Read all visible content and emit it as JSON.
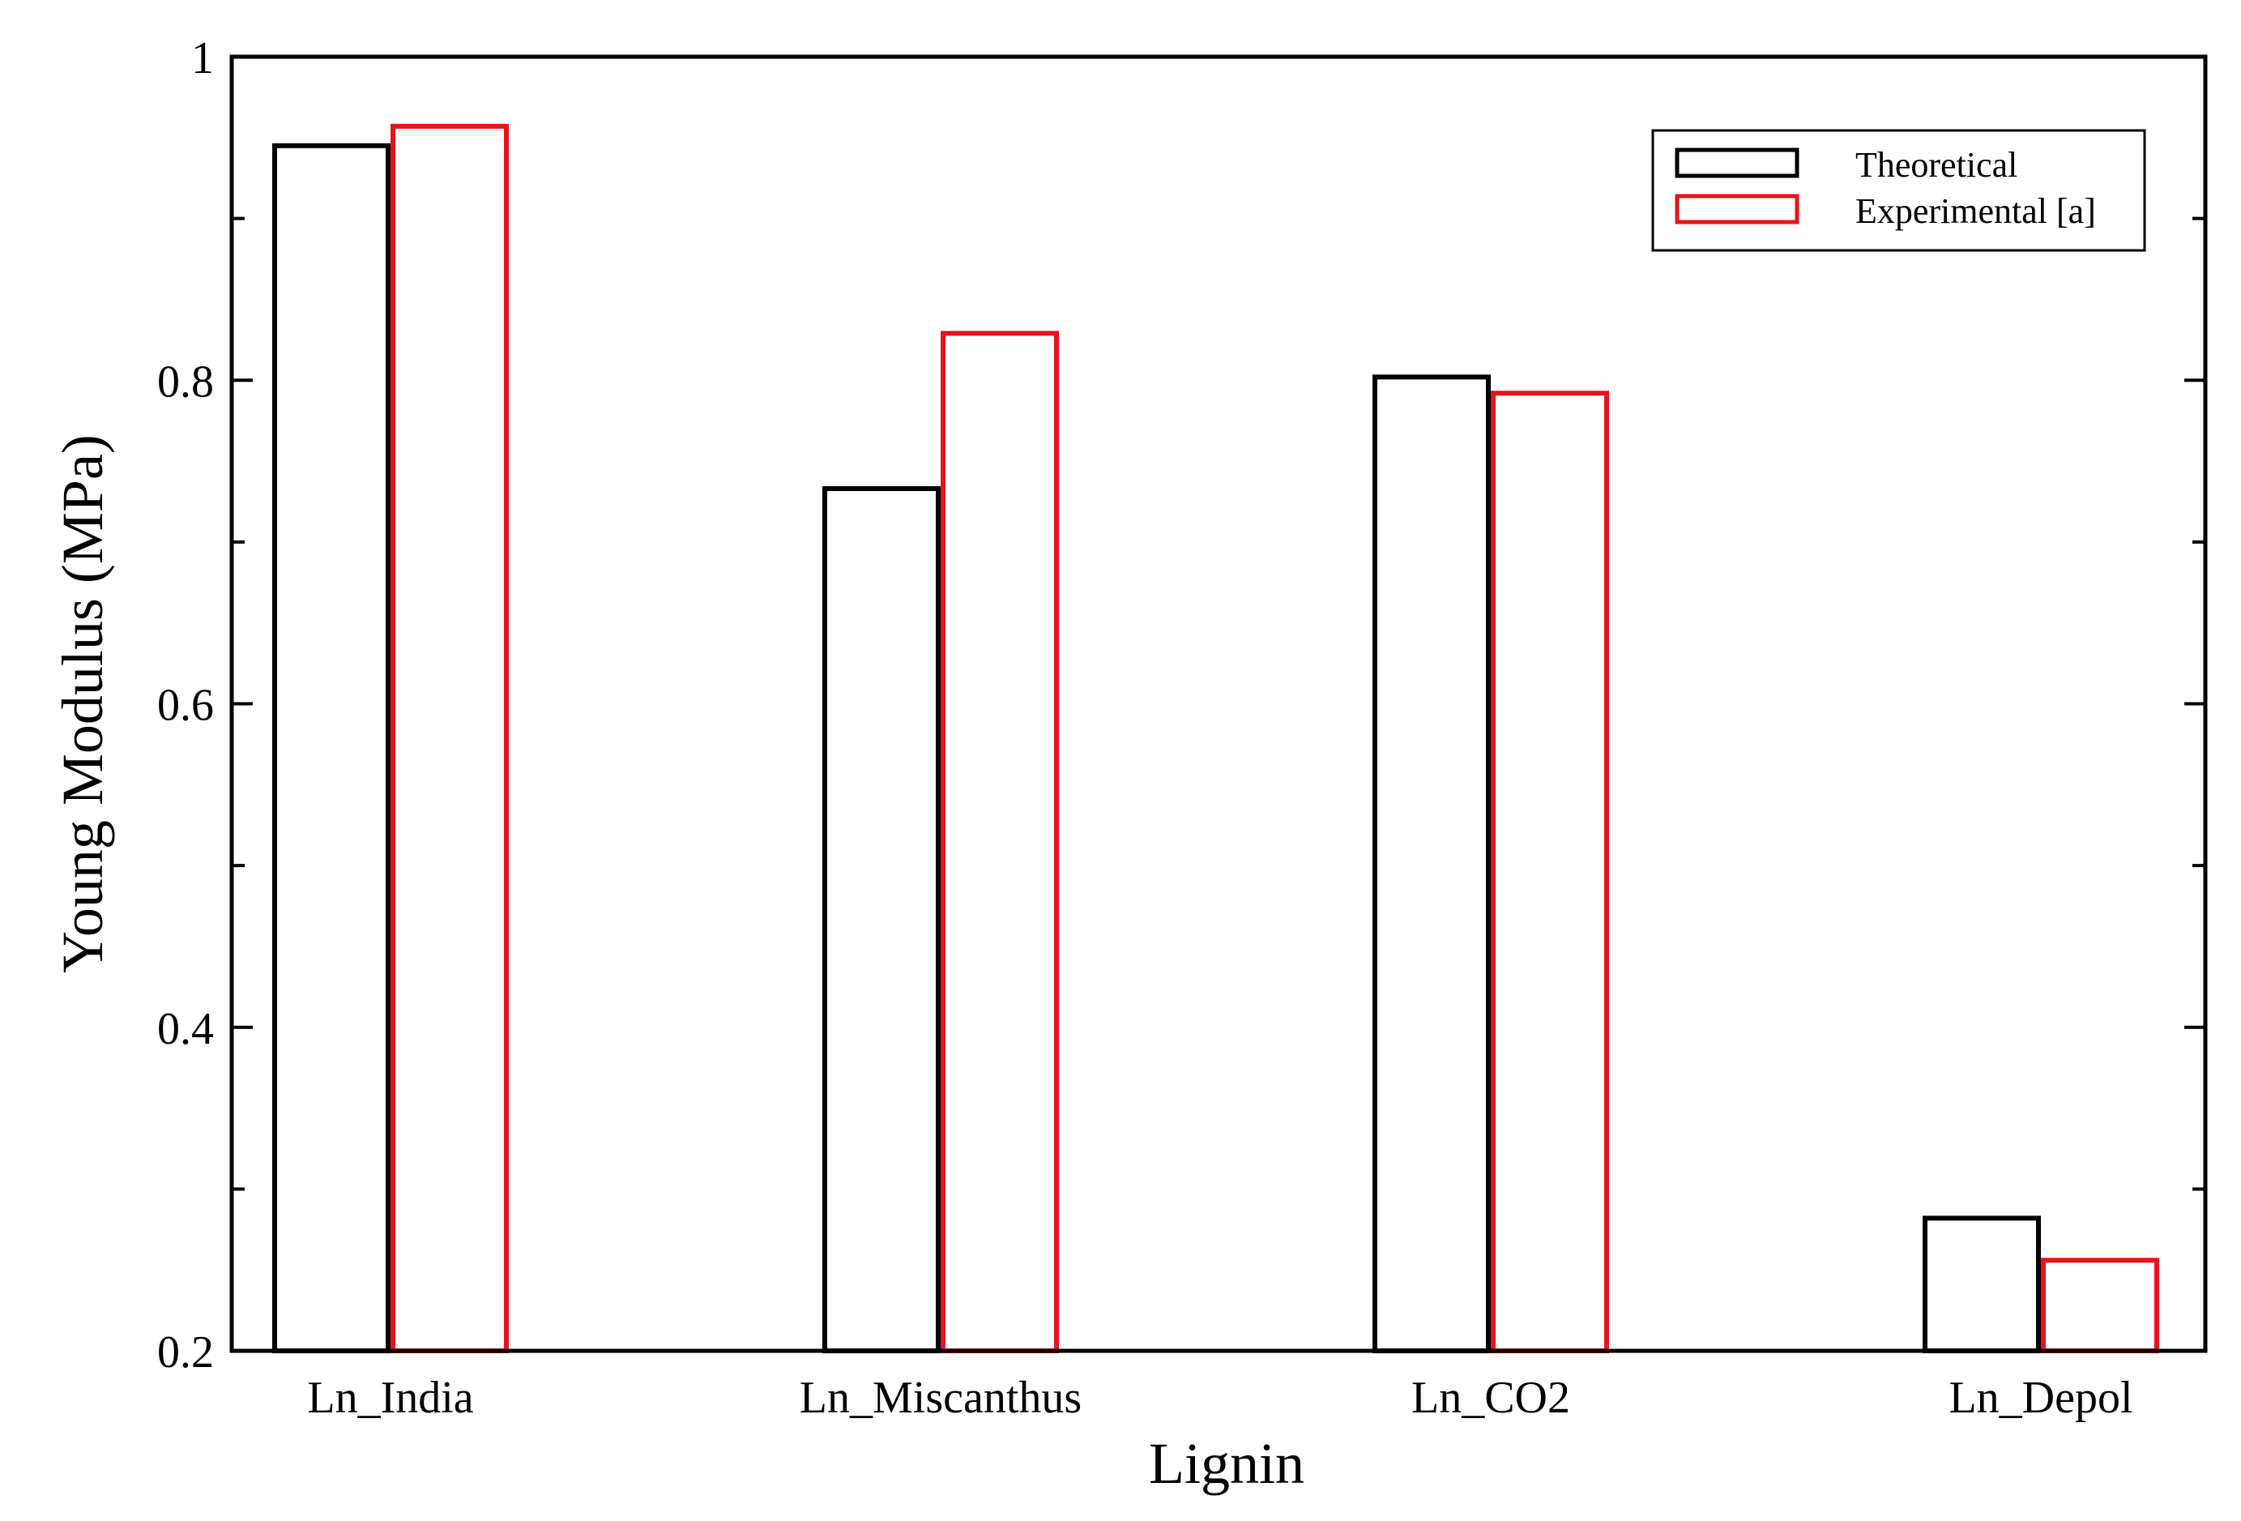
{
  "chart_data": {
    "type": "bar",
    "title": "",
    "xlabel": "Lignin",
    "ylabel": "Young Modulus (MPa)",
    "categories": [
      "Ln_India",
      "Ln_Miscanthus",
      "Ln_CO2",
      "Ln_Depol"
    ],
    "series": [
      {
        "name": "Theoretical",
        "color": "#000000",
        "values": [
          0.945,
          0.733,
          0.802,
          0.282
        ]
      },
      {
        "name": "Experimental [a]",
        "color": "#e8141c",
        "values": [
          0.957,
          0.829,
          0.792,
          0.256
        ]
      }
    ],
    "ylim": [
      0.2,
      1.0
    ],
    "yticks": [
      {
        "value": 0.2,
        "label": "0.2"
      },
      {
        "value": 0.4,
        "label": "0.4"
      },
      {
        "value": 0.6,
        "label": "0.6"
      },
      {
        "value": 0.8,
        "label": "0.8"
      },
      {
        "value": 1.0,
        "label": "1"
      }
    ],
    "yminor": [
      0.3,
      0.5,
      0.7,
      0.9
    ],
    "grid": false,
    "legend_position": "top-right",
    "bar_fill": "none"
  }
}
